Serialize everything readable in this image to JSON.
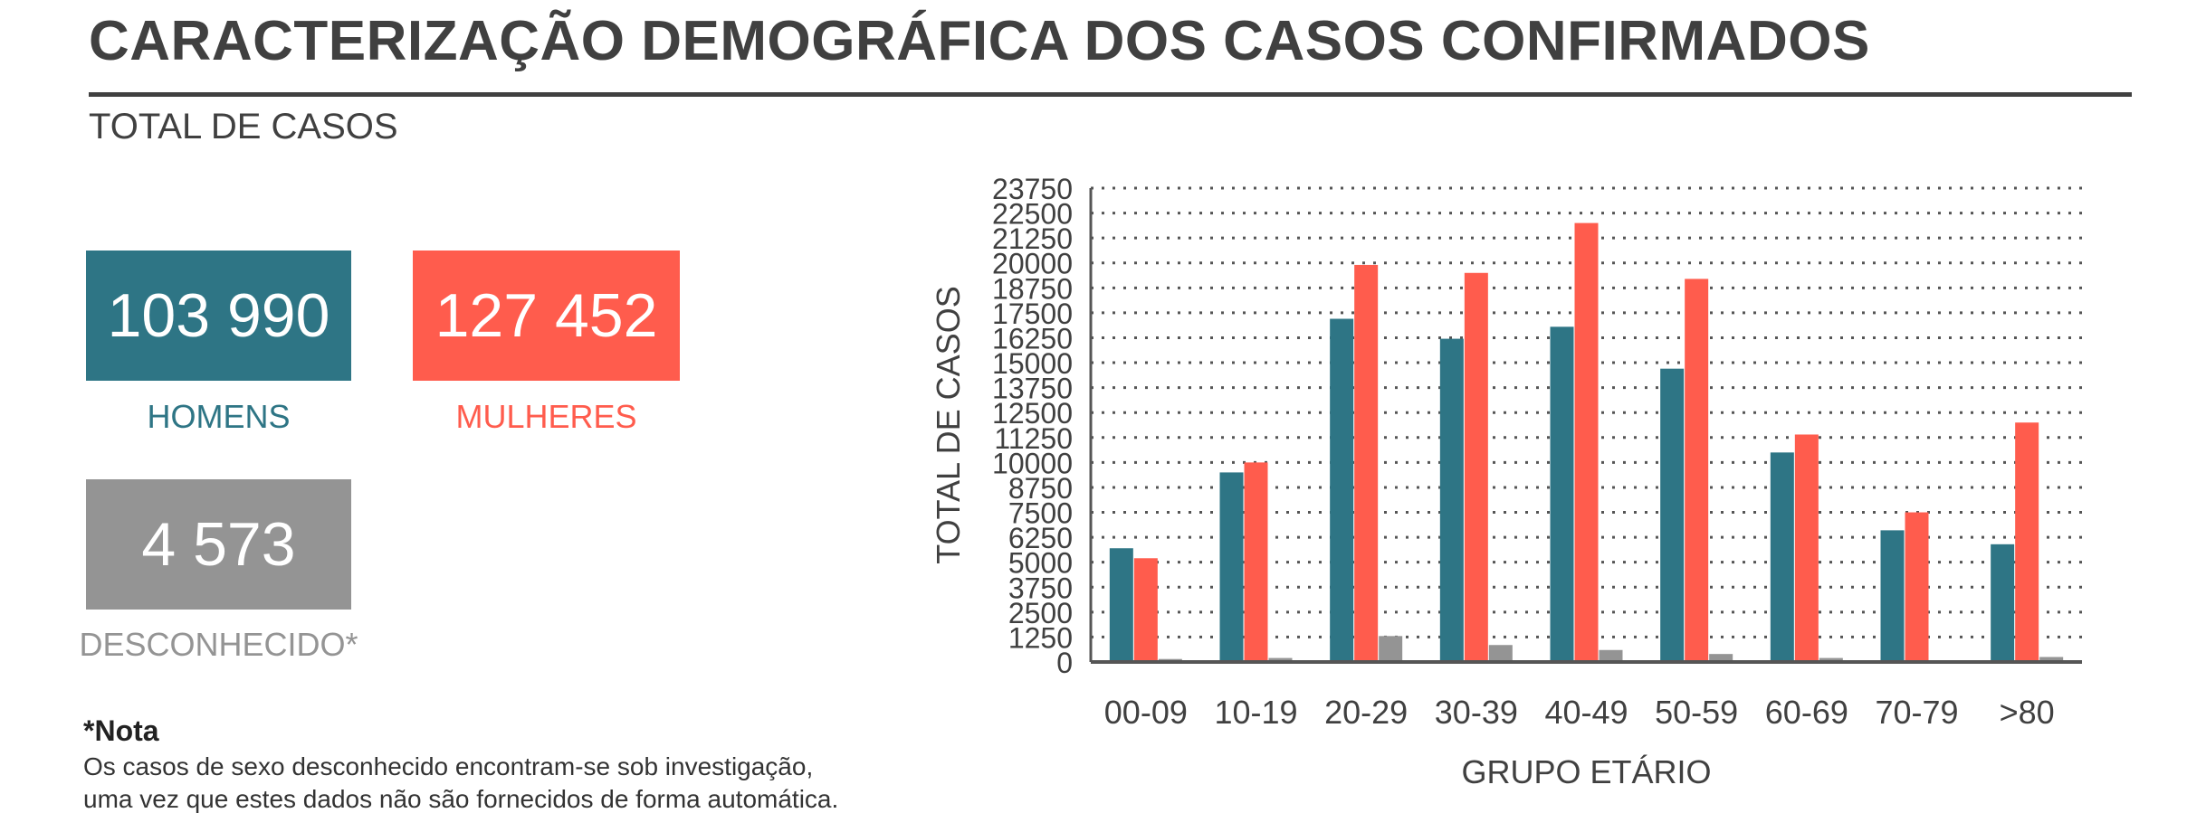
{
  "header": {
    "title": "CARACTERIZAÇÃO DEMOGRÁFICA DOS CASOS CONFIRMADOS",
    "subtitle": "TOTAL DE CASOS"
  },
  "summary": {
    "men": {
      "value": "103 990",
      "label": "HOMENS",
      "color": "#2e7585"
    },
    "women": {
      "value": "127 452",
      "label": "MULHERES",
      "color": "#ff5c4d"
    },
    "unknown": {
      "value": "4 573",
      "label": "DESCONHECIDO*",
      "color": "#949494"
    }
  },
  "note": {
    "title": "*Nota",
    "lines": [
      "Os casos de sexo desconhecido encontram-se sob investigação,",
      "uma vez que estes dados não são fornecidos de forma automática."
    ]
  },
  "chart_data": {
    "type": "bar",
    "xlabel": "GRUPO ETÁRIO",
    "ylabel": "TOTAL DE CASOS",
    "ylim": [
      0,
      23750
    ],
    "yticks": [
      0,
      1250,
      2500,
      3750,
      5000,
      6250,
      7500,
      8750,
      10000,
      11250,
      12500,
      13750,
      15000,
      16250,
      17500,
      18750,
      20000,
      21250,
      22500,
      23750
    ],
    "grid": "horizontal dotted",
    "legend": "none",
    "categories": [
      "00-09",
      "10-19",
      "20-29",
      "30-39",
      "40-49",
      "50-59",
      "60-69",
      "70-79",
      ">80"
    ],
    "series": [
      {
        "color": "#2e7585",
        "values": [
          5700,
          9500,
          17200,
          16200,
          16800,
          14700,
          10500,
          6600,
          5900
        ]
      },
      {
        "color": "#ff5c4d",
        "values": [
          5200,
          10000,
          19900,
          19500,
          22000,
          19200,
          11400,
          7500,
          12000
        ]
      },
      {
        "color": "#949494",
        "values": [
          150,
          200,
          1300,
          850,
          600,
          400,
          200,
          80,
          250
        ]
      }
    ]
  }
}
